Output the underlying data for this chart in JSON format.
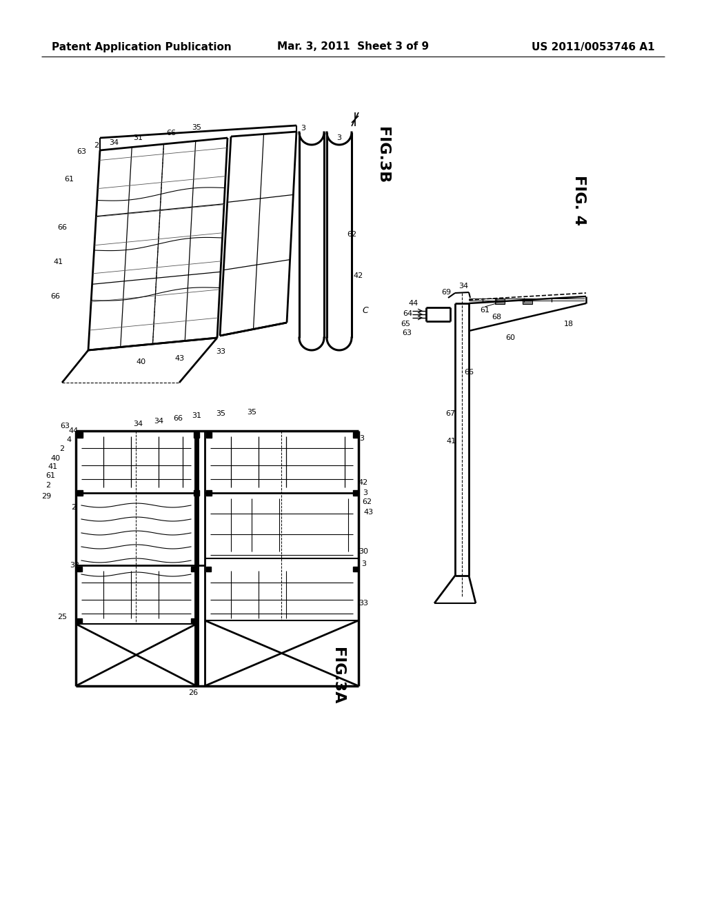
{
  "background_color": "#ffffff",
  "header_left": "Patent Application Publication",
  "header_center": "Mar. 3, 2011  Sheet 3 of 9",
  "header_right": "US 2011/0053746 A1",
  "header_fontsize": 11,
  "fig3b_label": "FIG.3B",
  "fig3a_label": "FIG.3A",
  "fig4_label": "FIG. 4"
}
